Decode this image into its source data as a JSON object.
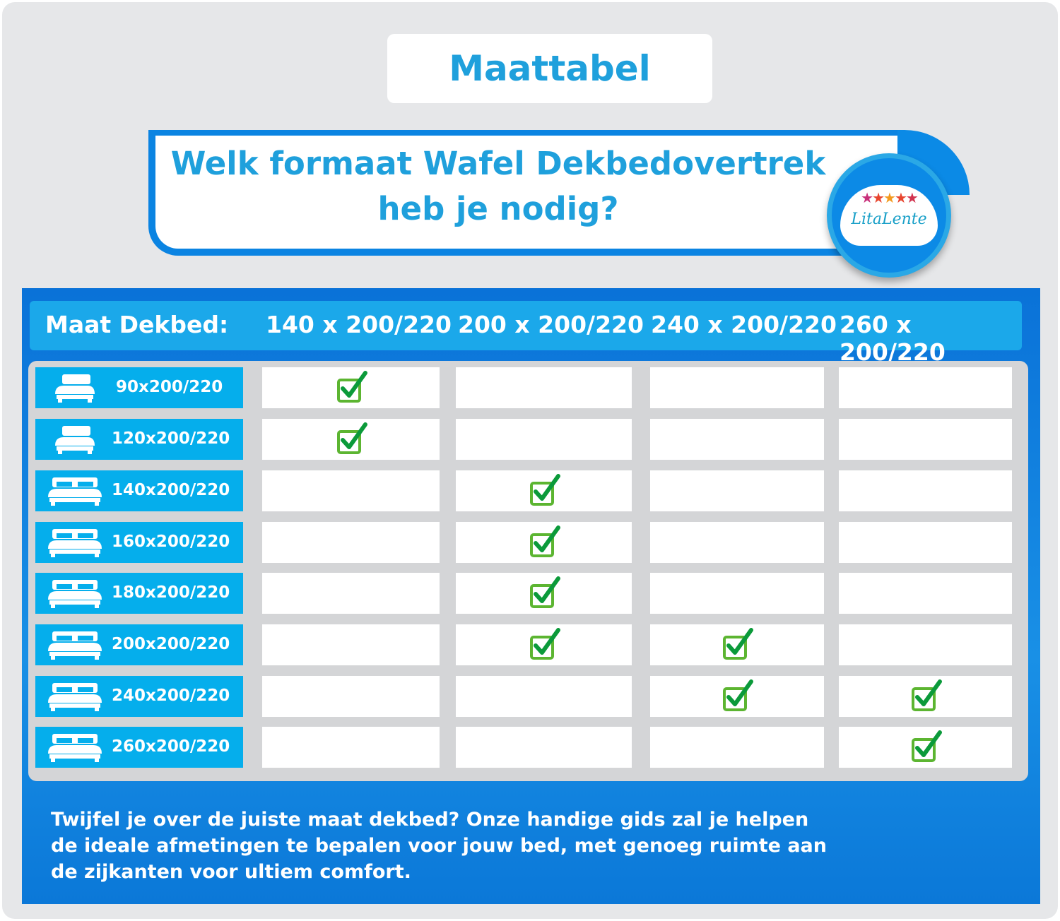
{
  "title": "Maattabel",
  "banner": {
    "line1": "Welk formaat Wafel Dekbedovertrek",
    "line2": "heb je nodig?"
  },
  "logo": {
    "text": "LitaLente",
    "stars": 5
  },
  "header": {
    "label": "Maat Dekbed:",
    "columns": [
      "140 x 200/220",
      "200 x 200/220",
      "240 x 200/220",
      "260 x 200/220"
    ]
  },
  "rows": [
    {
      "size": "90x200/220",
      "icon": "single-bed-icon",
      "checks": [
        true,
        false,
        false,
        false
      ]
    },
    {
      "size": "120x200/220",
      "icon": "single-bed-icon",
      "checks": [
        true,
        false,
        false,
        false
      ]
    },
    {
      "size": "140x200/220",
      "icon": "double-bed-icon",
      "checks": [
        false,
        true,
        false,
        false
      ]
    },
    {
      "size": "160x200/220",
      "icon": "double-bed-icon",
      "checks": [
        false,
        true,
        false,
        false
      ]
    },
    {
      "size": "180x200/220",
      "icon": "double-bed-icon",
      "checks": [
        false,
        true,
        false,
        false
      ]
    },
    {
      "size": "200x200/220",
      "icon": "double-bed-icon",
      "checks": [
        false,
        true,
        true,
        false
      ]
    },
    {
      "size": "240x200/220",
      "icon": "double-bed-icon",
      "checks": [
        false,
        false,
        true,
        true
      ]
    },
    {
      "size": "260x200/220",
      "icon": "double-bed-icon",
      "checks": [
        false,
        false,
        false,
        true
      ]
    }
  ],
  "footer": [
    "Twijfel je over de juiste maat dekbed? Onze handige gids zal je helpen",
    "de ideale afmetingen te bepalen voor jouw bed, met genoeg ruimte aan",
    "de zijkanten voor ultiem comfort."
  ],
  "colors": {
    "accent": "#1fa0dc",
    "panel": "#0a72d8",
    "label_bg": "#05aeec",
    "check": "#5cb531"
  }
}
